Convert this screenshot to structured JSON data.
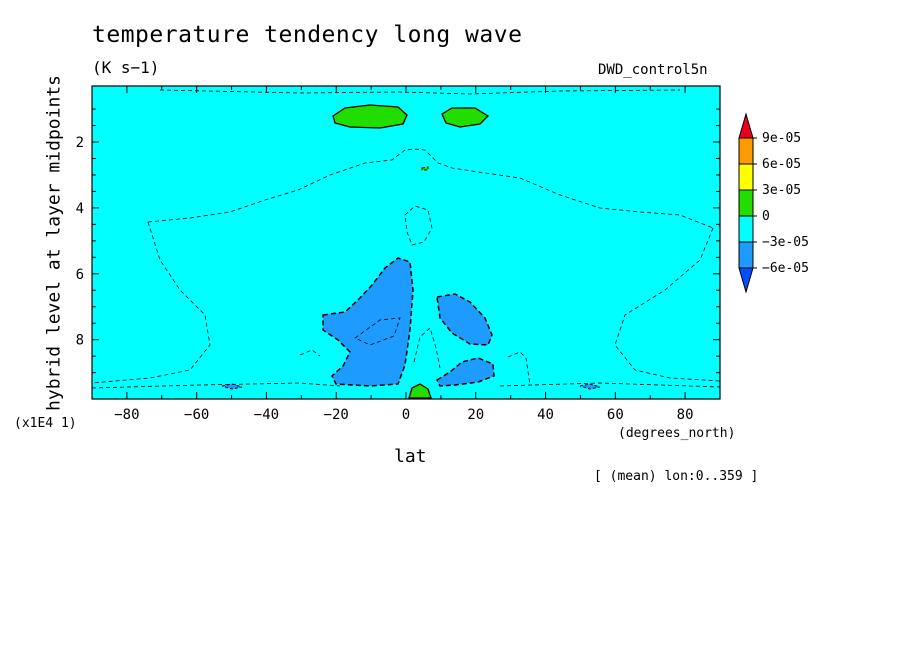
{
  "header": {
    "title": "temperature tendency long wave",
    "units": "(K s−1)",
    "dataset": "DWD_control5n"
  },
  "axes": {
    "y_label": "hybrid level at layer midpoints",
    "x_label": "lat",
    "x_units": "(degrees_north)",
    "scale_note": "(x1E4 1)",
    "footnote": "[ (mean) lon:0..359 ]"
  },
  "chart_data": {
    "type": "contour",
    "title": "temperature tendency long wave",
    "subtitle": "(K s−1)",
    "xlabel": "lat",
    "ylabel": "hybrid level at layer midpoints",
    "xlim": [
      -90,
      90
    ],
    "ylim": [
      9.8,
      0.3
    ],
    "y_reversed": true,
    "x_ticks": [
      -80,
      -60,
      -40,
      -20,
      0,
      20,
      40,
      60,
      80
    ],
    "y_ticks": [
      2,
      4,
      6,
      8
    ],
    "colorbar": {
      "levels": [
        -6e-05,
        -3e-05,
        0,
        3e-05,
        6e-05,
        9e-05
      ],
      "labels": [
        "9e-05",
        "6e-05",
        "3e-05",
        "0",
        "−3e-05",
        "−6e-05"
      ],
      "colors": [
        "#e8001e",
        "#ff9a00",
        "#ffff00",
        "#22dd00",
        "#00ffff",
        "#1e9bff",
        "#0050ff"
      ]
    },
    "background_color": "#00ffff",
    "regions": [
      {
        "name": "positive-region-upper-left",
        "sign": "positive",
        "color": "#22dd00",
        "center": [
          -10,
          1.2
        ]
      },
      {
        "name": "positive-region-upper-right",
        "sign": "positive",
        "color": "#22dd00",
        "center": [
          15,
          1.2
        ]
      },
      {
        "name": "positive-region-surface-equator",
        "sign": "positive",
        "color": "#22dd00",
        "center": [
          4,
          9.7
        ]
      },
      {
        "name": "negative-region-left",
        "sign": "negative",
        "color": "#1e9bff",
        "center": [
          -10,
          8.2
        ]
      },
      {
        "name": "negative-region-right",
        "sign": "negative",
        "color": "#1e9bff",
        "center": [
          18,
          7.8
        ]
      },
      {
        "name": "negative-region-lower-right",
        "sign": "negative",
        "color": "#1e9bff",
        "center": [
          15,
          9.3
        ]
      }
    ]
  }
}
